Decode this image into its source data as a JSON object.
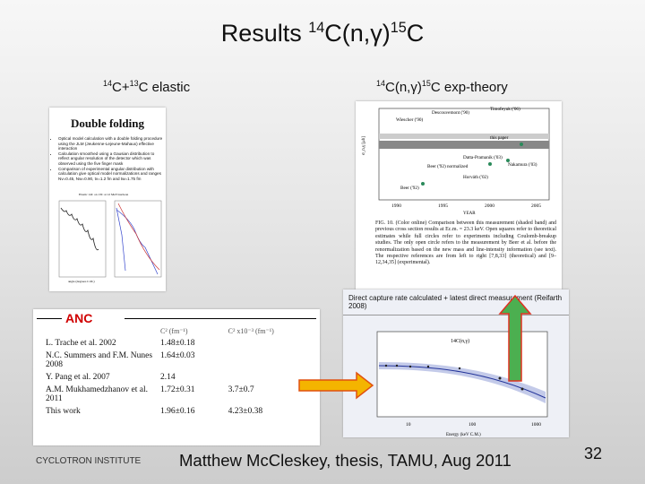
{
  "title": {
    "lead": "Results ",
    "sup1": "14",
    "mid": "C(n,",
    "greek": "γ",
    "close": ")",
    "sup2": "15",
    "end": "C"
  },
  "left_label": {
    "sup1": "14",
    "mid": "C+",
    "sup2": "13",
    "end": "C elastic"
  },
  "right_label": {
    "sup1": "14",
    "mid": "C(n,γ)",
    "sup2": "15",
    "end": "C exp-theory"
  },
  "double_folding": {
    "heading": "Double folding",
    "bullets": [
      "Optical model calculation with a double folding procedure using the JLM (Jeukenne-Lejeune-Mahaux) effective interaction",
      "Calculation smoothed using a Gausian distribution to reflect angular resolution of the detector which was observed using the five finger mask",
      "Comparison of experimental angular distribution with calculation give optical model normalizations and ranges Nv=0.45, Nw=0.90, tv=1.2 fm and tw=1.75 fm"
    ],
    "plot_title": "Elastic 14C on 13C at 12 MeV/nucleon",
    "xlabel": "angle (degrees C.M.)"
  },
  "exp_theory": {
    "legend": [
      "Descouvemont ('90)",
      "Timofeyuk ('06)",
      "Wiescher ('90)",
      "this paper",
      "Datta-Pramanik ('03)",
      "Beer ('92) normalized",
      "Nakamura ('03)",
      "Horváth ('02)",
      "Beer ('92)"
    ],
    "years": [
      "1990",
      "1995",
      "2000",
      "2005"
    ],
    "xlabel": "YEAR",
    "ylabel": "σ_n,γ [μb]",
    "caption": "FIG. 10. (Color online) Comparison between this measurement (shaded band) and previous cross section results at Ec.m. = 23.3 keV. Open squares refer to theoretical estimates while full circles refer to experiments including Coulomb-breakup studies. The only open circle refers to the measurement by Beer et al. before the renormalization based on the new mass and line-intensity information (see text). The respective references are from left to right [7,8,33] (theoretical) and [9–12,34,35] (experimental)."
  },
  "direct_capture": {
    "header": "Direct capture rate calculated + latest direct measurement (Reifarth 2008)",
    "plot_title": "14C(n,γ)",
    "xlabel": "Energy (keV C.M.)",
    "xticks": [
      "10",
      "100",
      "1000"
    ]
  },
  "anc": {
    "heading": "ANC",
    "columns": [
      "",
      "C² (fm⁻¹)",
      "C² x10⁻³ (fm⁻¹)"
    ],
    "rows": [
      [
        "L. Trache et al. 2002",
        "1.48±0.18",
        ""
      ],
      [
        "N.C. Summers and F.M. Nunes 2008",
        "1.64±0.03",
        ""
      ],
      [
        "Y. Pang et al. 2007",
        "2.14",
        ""
      ],
      [
        "A.M. Mukhamedzhanov et al. 2011",
        "1.72±0.31",
        "3.7±0.7"
      ],
      [
        "This work",
        "1.96±0.16",
        "4.23±0.38"
      ]
    ]
  },
  "footer": {
    "institute": "CYCLOTRON INSTITUTE",
    "citation": "Matthew McCleskey, thesis, TAMU, Aug 2011",
    "page": "32"
  }
}
